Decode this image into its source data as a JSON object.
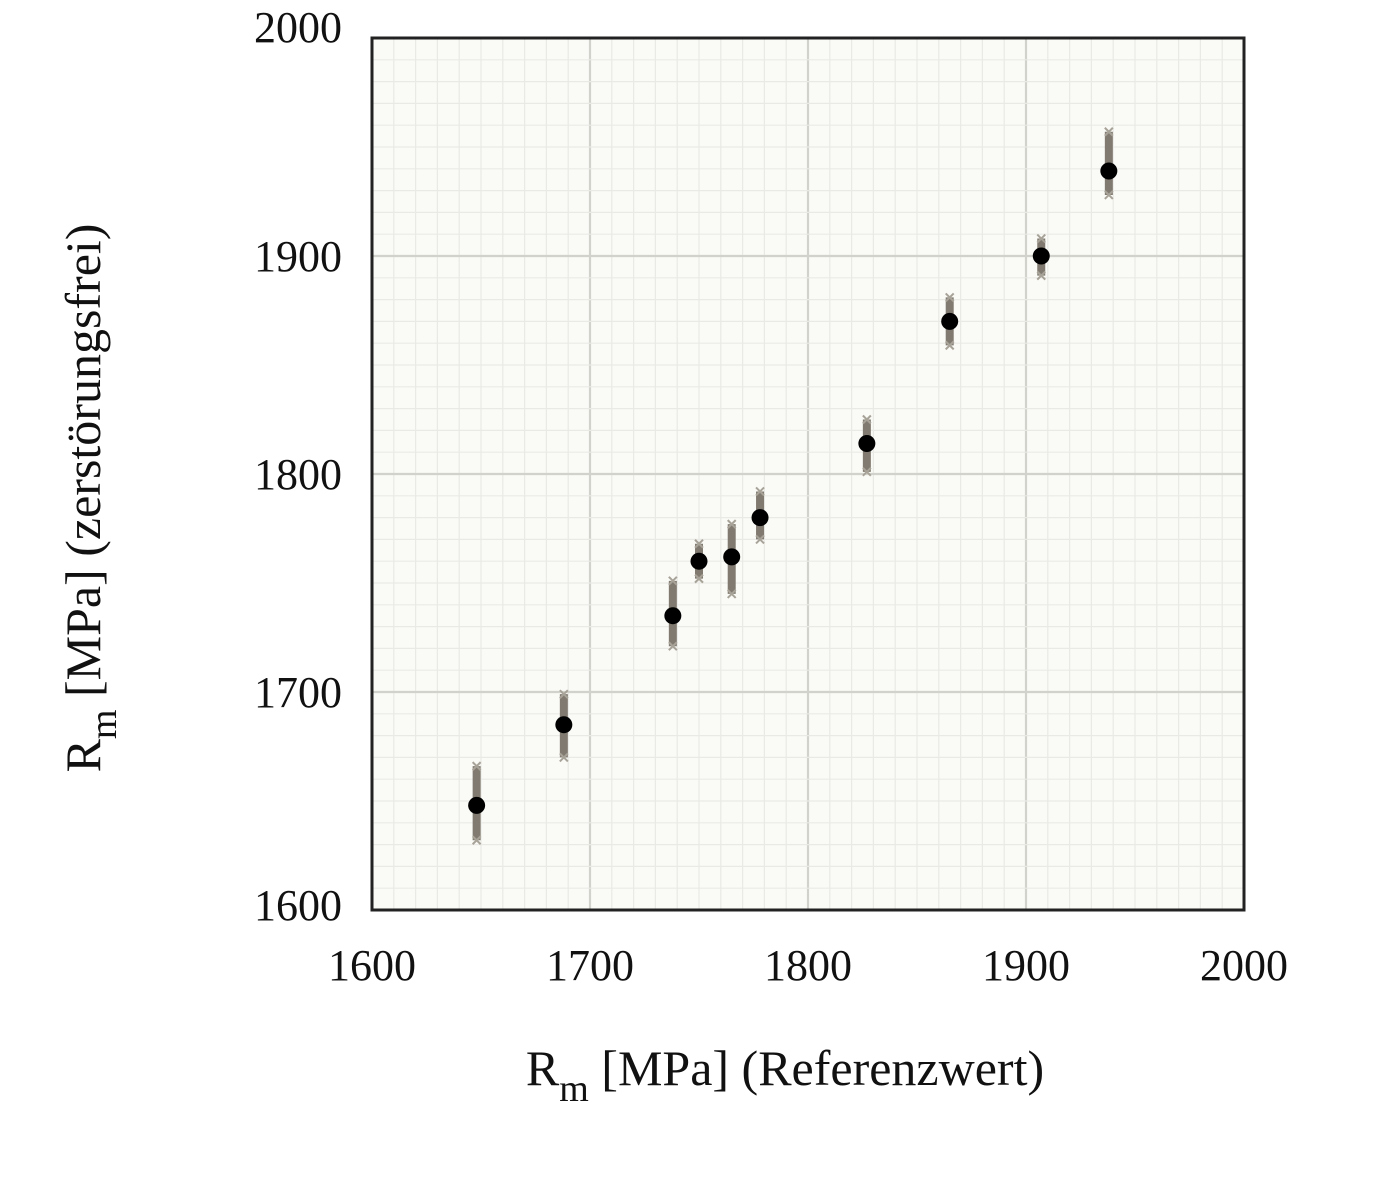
{
  "chart_data": {
    "type": "scatter",
    "title": "",
    "xlabel": {
      "main": "R",
      "sub": "m",
      "rest": " [MPa] (Referenzwert)"
    },
    "ylabel": {
      "main": "R",
      "sub": "m",
      "rest": " [MPa] (zerstörungsfrei)"
    },
    "xlim": [
      1600,
      2000
    ],
    "ylim": [
      1600,
      2000
    ],
    "x_ticks": [
      "1600",
      "1700",
      "1800",
      "1900",
      "2000"
    ],
    "y_ticks": [
      "1600",
      "1700",
      "1800",
      "1900",
      "2000"
    ],
    "major_grid_step": 100,
    "minor_grid_step": 10,
    "grid": true,
    "legend": "none",
    "colors": {
      "marker": "#000000",
      "error_bar": "#807a70",
      "major_grid": "#d2d2cc",
      "minor_grid": "#e9e9e5",
      "plot_background": "#fafaf6",
      "frame": "#222222"
    },
    "points": [
      {
        "x": 1648,
        "y": 1648,
        "err_low": 16,
        "err_high": 18
      },
      {
        "x": 1688,
        "y": 1685,
        "err_low": 15,
        "err_high": 14
      },
      {
        "x": 1738,
        "y": 1735,
        "err_low": 14,
        "err_high": 16
      },
      {
        "x": 1750,
        "y": 1760,
        "err_low": 8,
        "err_high": 8
      },
      {
        "x": 1765,
        "y": 1762,
        "err_low": 17,
        "err_high": 15
      },
      {
        "x": 1778,
        "y": 1780,
        "err_low": 10,
        "err_high": 12
      },
      {
        "x": 1827,
        "y": 1814,
        "err_low": 13,
        "err_high": 11
      },
      {
        "x": 1865,
        "y": 1870,
        "err_low": 11,
        "err_high": 11
      },
      {
        "x": 1907,
        "y": 1900,
        "err_low": 9,
        "err_high": 8
      },
      {
        "x": 1938,
        "y": 1939,
        "err_low": 11,
        "err_high": 18
      }
    ]
  }
}
